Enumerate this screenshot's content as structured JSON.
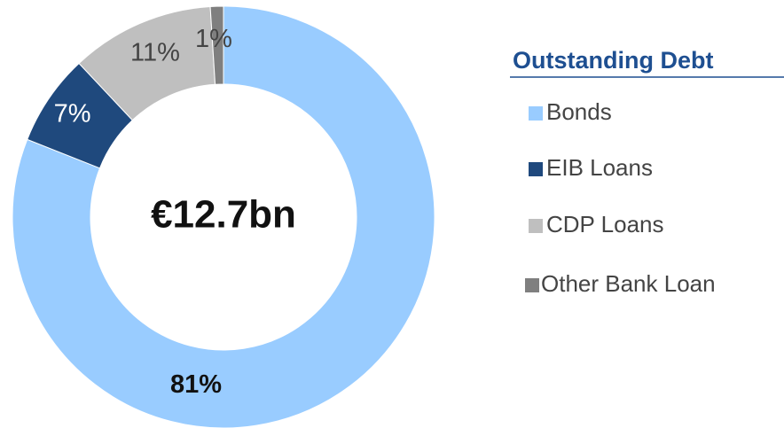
{
  "chart_data": {
    "type": "pie",
    "donut": true,
    "center_label": "€12.7bn",
    "legend_title": "Outstanding Debt",
    "categories": [
      "Bonds",
      "EIB Loans",
      "CDP Loans",
      "Other Bank Loan"
    ],
    "values": [
      81,
      7,
      11,
      1
    ],
    "value_labels": [
      "81%",
      "7%",
      "11%",
      "1%"
    ],
    "colors": [
      "#99ccff",
      "#1f497d",
      "#bfbfbf",
      "#7f7f7f"
    ],
    "legend": "right"
  }
}
